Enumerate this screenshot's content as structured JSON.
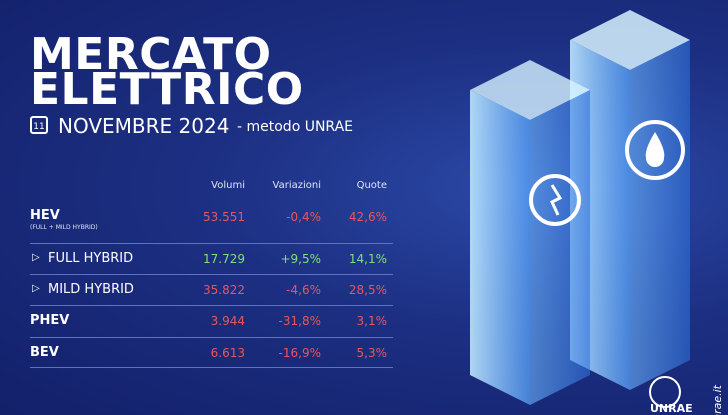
{
  "title": {
    "line1": "MERCATO",
    "line2": "ELETTRICO"
  },
  "date": {
    "day": "11",
    "month": "NOVEMBRE 2024",
    "method": "- metodo UNRAE"
  },
  "table": {
    "headers": [
      "Volumi",
      "Variazioni",
      "Quote"
    ],
    "rows": [
      {
        "label": "HEV",
        "note": "(FULL + MILD HYBRID)",
        "cells": [
          "53.551",
          "-0,4%",
          "42,6%"
        ]
      },
      {
        "label": "FULL HYBRID",
        "cells": [
          "17.729",
          "+9,5%",
          "14,1%"
        ]
      },
      {
        "label": "MILD HYBRID",
        "cells": [
          "35.822",
          "-4,6%",
          "28,5%"
        ]
      },
      {
        "label": "PHEV",
        "cells": [
          "3.944",
          "-31,8%",
          "3,1%"
        ]
      },
      {
        "label": "BEV",
        "cells": [
          "6.613",
          "-16,9%",
          "5,3%"
        ]
      }
    ]
  },
  "footer": {
    "site": "unrae.it",
    "logo": "UNRAE"
  }
}
